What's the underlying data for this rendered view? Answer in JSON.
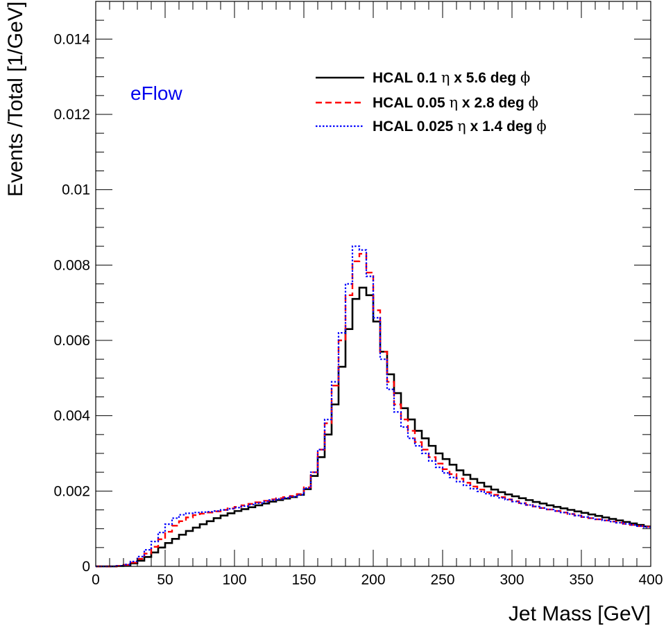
{
  "chart_data": {
    "type": "line",
    "xlabel": "Jet Mass [GeV]",
    "ylabel": "Events /Total [1/GeV]",
    "xlim": [
      0,
      400
    ],
    "ylim": [
      0,
      0.015
    ],
    "x_ticks": [
      0,
      50,
      100,
      150,
      200,
      250,
      300,
      350,
      400
    ],
    "x_tick_labels": [
      "0",
      "50",
      "100",
      "150",
      "200",
      "250",
      "300",
      "350",
      "400"
    ],
    "y_ticks": [
      0,
      0.002,
      0.004,
      0.006,
      0.008,
      0.01,
      0.012,
      0.014
    ],
    "y_tick_labels": [
      "0",
      "0.002",
      "0.004",
      "0.006",
      "0.008",
      "0.01",
      "0.012",
      "0.014"
    ],
    "grid": false,
    "legend_position": "top-right",
    "annotation": {
      "text": "eFlow",
      "color": "#0000ee"
    },
    "x": [
      2.5,
      7.5,
      12.5,
      17.5,
      22.5,
      27.5,
      32.5,
      37.5,
      42.5,
      47.5,
      52.5,
      57.5,
      62.5,
      67.5,
      72.5,
      77.5,
      82.5,
      87.5,
      92.5,
      97.5,
      102.5,
      107.5,
      112.5,
      117.5,
      122.5,
      127.5,
      132.5,
      137.5,
      142.5,
      147.5,
      152.5,
      157.5,
      162.5,
      167.5,
      172.5,
      177.5,
      182.5,
      187.5,
      192.5,
      197.5,
      202.5,
      207.5,
      212.5,
      217.5,
      222.5,
      227.5,
      232.5,
      237.5,
      242.5,
      247.5,
      252.5,
      257.5,
      262.5,
      267.5,
      272.5,
      277.5,
      282.5,
      287.5,
      292.5,
      297.5,
      302.5,
      307.5,
      312.5,
      317.5,
      322.5,
      327.5,
      332.5,
      337.5,
      342.5,
      347.5,
      352.5,
      357.5,
      362.5,
      367.5,
      372.5,
      377.5,
      382.5,
      387.5,
      392.5,
      397.5
    ],
    "series": [
      {
        "name": "HCAL 0.1 η x 5.6 deg ϕ",
        "color": "#000000",
        "style": "solid",
        "values": [
          0.0,
          0.0,
          0.0,
          1e-05,
          3e-05,
          8e-05,
          0.00015,
          0.00025,
          0.00037,
          0.0005,
          0.00062,
          0.00073,
          0.00084,
          0.00094,
          0.00103,
          0.00112,
          0.0012,
          0.00128,
          0.00135,
          0.00141,
          0.00147,
          0.00152,
          0.00157,
          0.00162,
          0.00167,
          0.00172,
          0.00176,
          0.0018,
          0.00184,
          0.0019,
          0.00205,
          0.0024,
          0.0029,
          0.0035,
          0.0043,
          0.0053,
          0.0063,
          0.0071,
          0.0074,
          0.0072,
          0.0065,
          0.0057,
          0.0051,
          0.0046,
          0.0042,
          0.0039,
          0.0036,
          0.0034,
          0.0032,
          0.003,
          0.00285,
          0.0027,
          0.00255,
          0.00243,
          0.00232,
          0.00222,
          0.00212,
          0.00204,
          0.00197,
          0.00191,
          0.00186,
          0.00181,
          0.00176,
          0.00171,
          0.00167,
          0.00162,
          0.00158,
          0.00154,
          0.0015,
          0.00146,
          0.00142,
          0.00138,
          0.00134,
          0.0013,
          0.00126,
          0.00122,
          0.00118,
          0.00114,
          0.0011,
          0.00106
        ]
      },
      {
        "name": "HCAL 0.05 η x 2.8 deg ϕ",
        "color": "#ff0000",
        "style": "dashed",
        "values": [
          0.0,
          0.0,
          0.0,
          1e-05,
          4e-05,
          0.0001,
          0.0002,
          0.00034,
          0.00052,
          0.00072,
          0.00092,
          0.00108,
          0.0012,
          0.0013,
          0.00136,
          0.0014,
          0.00143,
          0.00146,
          0.0015,
          0.00154,
          0.00158,
          0.00162,
          0.00166,
          0.0017,
          0.00174,
          0.00178,
          0.00181,
          0.00184,
          0.00187,
          0.00192,
          0.0021,
          0.0025,
          0.0031,
          0.0038,
          0.0048,
          0.006,
          0.0072,
          0.0081,
          0.0083,
          0.0078,
          0.0068,
          0.0057,
          0.0049,
          0.0043,
          0.0039,
          0.0036,
          0.0033,
          0.0031,
          0.0029,
          0.00273,
          0.00258,
          0.00245,
          0.00233,
          0.00222,
          0.00212,
          0.00204,
          0.00197,
          0.0019,
          0.00184,
          0.00178,
          0.00173,
          0.00168,
          0.00163,
          0.00159,
          0.00155,
          0.00151,
          0.00147,
          0.00143,
          0.00139,
          0.00135,
          0.00131,
          0.00128,
          0.00125,
          0.00122,
          0.00119,
          0.00116,
          0.00113,
          0.0011,
          0.00107,
          0.00105
        ]
      },
      {
        "name": "HCAL 0.025 η x 1.4 deg ϕ",
        "color": "#0000ff",
        "style": "dotted",
        "values": [
          0.0,
          0.0,
          0.0,
          1e-05,
          5e-05,
          0.00013,
          0.00026,
          0.00044,
          0.00066,
          0.0009,
          0.00112,
          0.00128,
          0.00137,
          0.00141,
          0.00143,
          0.00144,
          0.00145,
          0.00147,
          0.0015,
          0.00153,
          0.00156,
          0.0016,
          0.00164,
          0.00168,
          0.00172,
          0.00176,
          0.00179,
          0.00182,
          0.00185,
          0.0019,
          0.00208,
          0.0025,
          0.0031,
          0.0039,
          0.0049,
          0.0062,
          0.0075,
          0.0085,
          0.0084,
          0.0077,
          0.0066,
          0.0055,
          0.0047,
          0.0041,
          0.0037,
          0.0034,
          0.0032,
          0.003,
          0.0028,
          0.00263,
          0.00248,
          0.00236,
          0.00225,
          0.00215,
          0.00206,
          0.00199,
          0.00193,
          0.00187,
          0.00182,
          0.00177,
          0.00172,
          0.00167,
          0.00163,
          0.00159,
          0.00155,
          0.00151,
          0.00147,
          0.00143,
          0.00139,
          0.00135,
          0.00131,
          0.00128,
          0.00125,
          0.00122,
          0.00119,
          0.00116,
          0.00113,
          0.0011,
          0.00107,
          0.00104
        ]
      }
    ],
    "legend": {
      "entries": [
        {
          "prefix": "HCAL 0.1 ",
          "eta": "η",
          "mid": " x 5.6 deg ",
          "phi": "ϕ"
        },
        {
          "prefix": "HCAL 0.05 ",
          "eta": "η",
          "mid": " x 2.8 deg  ",
          "phi": "ϕ"
        },
        {
          "prefix": "HCAL 0.025 ",
          "eta": "η",
          "mid": " x 1.4 deg  ",
          "phi": "ϕ"
        }
      ]
    }
  }
}
